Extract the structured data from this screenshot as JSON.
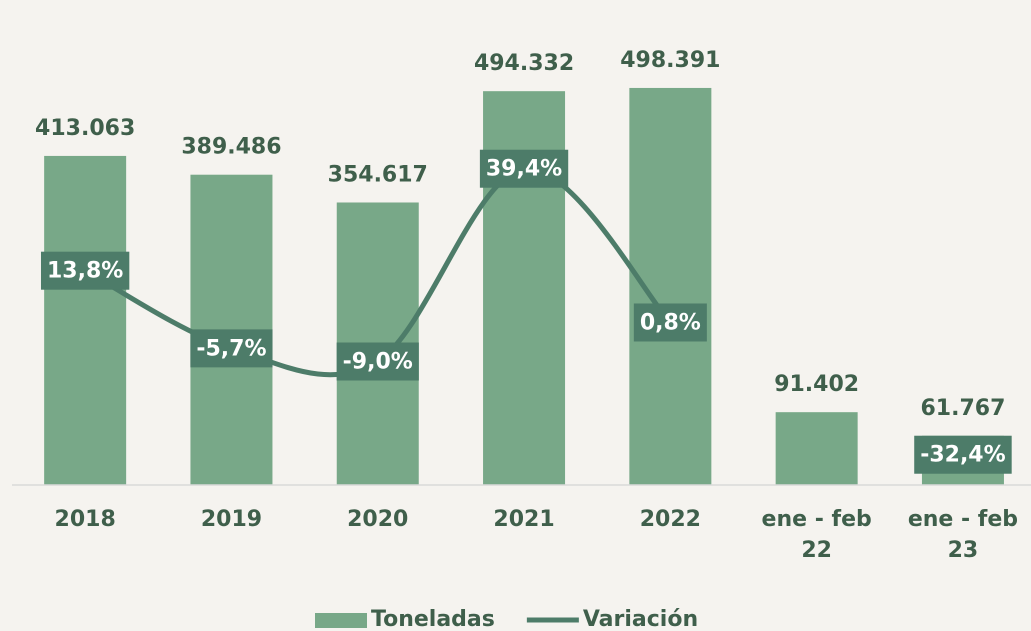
{
  "chart_data": {
    "type": "bar",
    "categories": [
      "2018",
      "2019",
      "2020",
      "2021",
      "2022",
      "ene - feb 22",
      "ene - feb 23"
    ],
    "series": [
      {
        "name": "Toneladas",
        "type": "bar",
        "color": "#78a888",
        "values": [
          413063,
          389486,
          354617,
          494332,
          498391,
          91402,
          61767
        ],
        "value_labels": [
          "413.063",
          "389.486",
          "354.617",
          "494.332",
          "498.391",
          "91.402",
          "61.767"
        ]
      },
      {
        "name": "Variación",
        "type": "line",
        "axis": "y2",
        "color": "#4d7c69",
        "values": [
          13.8,
          -5.7,
          -9.0,
          39.4,
          0.8,
          null,
          -32.4
        ],
        "value_labels": [
          "13,8%",
          "-5,7%",
          "-9,0%",
          "39,4%",
          "0,8%",
          null,
          "-32,4%"
        ]
      }
    ],
    "ylim": [
      0,
      600000
    ],
    "y2lim": [
      -40,
      80
    ],
    "legend": "bottom"
  }
}
